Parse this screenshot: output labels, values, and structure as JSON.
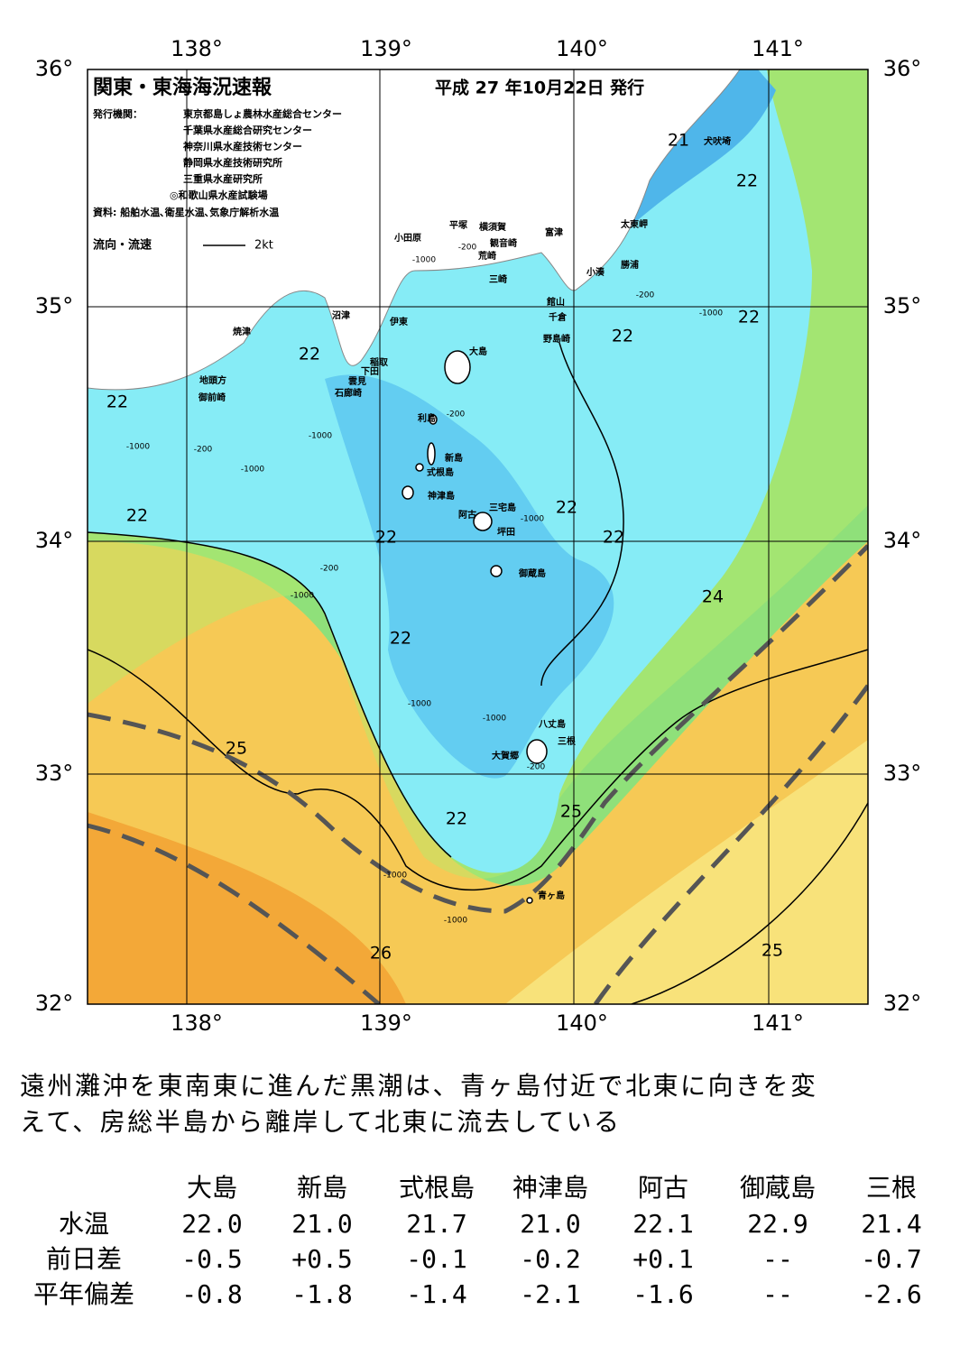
{
  "map": {
    "title": "関東・東海海況速報",
    "date": "平成 27 年10月22日 発行",
    "issuer_label": "発行機関：",
    "issuers": [
      "東京都島しょ農林水産総合センター",
      "千葉県水産総合研究センター",
      "神奈川県水産技術センター",
      "静岡県水産技術研究所",
      "三重県水産研究所",
      "◎和歌山県水産試験場"
    ],
    "source": "資料: 船舶水温､衛星水温､気象庁解析水温",
    "legend_label": "流向・流速",
    "legend_unit": "2kt",
    "lon_labels": [
      "138°",
      "139°",
      "140°",
      "141°"
    ],
    "lat_labels": [
      "36°",
      "35°",
      "34°",
      "33°",
      "32°"
    ],
    "places": [
      "犬吠埼",
      "太東岬",
      "勝浦",
      "小湊",
      "富津",
      "横須賀",
      "平塚",
      "観音崎",
      "荒崎",
      "三崎",
      "小田原",
      "館山",
      "千倉",
      "野島崎",
      "沼津",
      "伊東",
      "大島",
      "稲取",
      "下田",
      "雲見",
      "石廊崎",
      "焼津",
      "地頭方",
      "御前崎",
      "利島",
      "新島",
      "式根島",
      "神津島",
      "三宅島",
      "阿古",
      "坪田",
      "御蔵島",
      "八丈島",
      "三根",
      "大賀郷",
      "青ヶ島"
    ],
    "contour_labels": [
      "21",
      "22",
      "22",
      "22",
      "22",
      "22",
      "22",
      "22",
      "22",
      "22",
      "24",
      "22",
      "25",
      "25",
      "22",
      "26",
      "25"
    ],
    "depth_labels": [
      "-200",
      "-1000",
      "-200",
      "-1000",
      "-1000",
      "-200",
      "-1000",
      "-200",
      "-1000",
      "-200",
      "-1000",
      "-1000",
      "-1000",
      "-1000",
      "-200",
      "-1000",
      "-1000"
    ]
  },
  "summary": [
    "遠州灘沖を東南東に進んだ黒潮は、青ヶ島付近で北東に向きを変",
    "えて、房総半島から離岸して北東に流去している"
  ],
  "table": {
    "columns": [
      "大島",
      "新島",
      "式根島",
      "神津島",
      "阿古",
      "御蔵島",
      "三根"
    ],
    "rows": [
      {
        "label": "水温",
        "values": [
          "22.0",
          "21.0",
          "21.7",
          "21.0",
          "22.1",
          "22.9",
          "21.4"
        ]
      },
      {
        "label": "前日差",
        "values": [
          "-0.5",
          "+0.5",
          "-0.1",
          "-0.2",
          "+0.1",
          "--",
          "-0.7"
        ]
      },
      {
        "label": "平年偏差",
        "values": [
          "-0.8",
          "-1.8",
          "-1.4",
          "-2.1",
          "-1.6",
          "--",
          "-2.6"
        ]
      }
    ]
  }
}
